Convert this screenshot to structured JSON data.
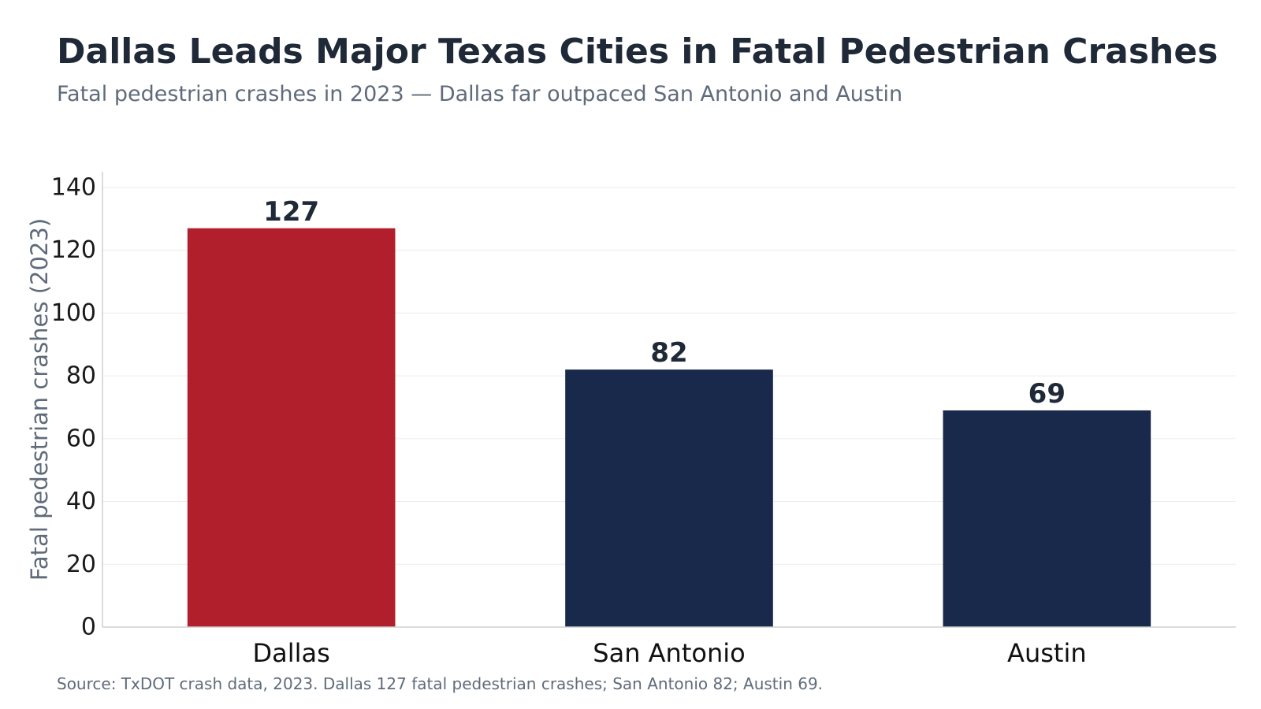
{
  "chart_data": {
    "type": "bar",
    "title": "Dallas Leads Major Texas Cities in Fatal Pedestrian Crashes",
    "subtitle": "Fatal pedestrian crashes in 2023 — Dallas far outpaced San Antonio and Austin",
    "ylabel": "Fatal pedestrian crashes (2023)",
    "xlabel": "",
    "categories": [
      "Dallas",
      "San Antonio",
      "Austin"
    ],
    "values": [
      127,
      82,
      69
    ],
    "bar_colors": [
      "#b01f2b",
      "#19294b",
      "#19294b"
    ],
    "ylim": [
      0,
      145
    ],
    "yticks": [
      0,
      20,
      40,
      60,
      80,
      100,
      120,
      140
    ],
    "grid": true,
    "source": "Source: TxDOT crash data, 2023. Dallas 127 fatal pedestrian crashes; San Antonio 82; Austin 69."
  }
}
